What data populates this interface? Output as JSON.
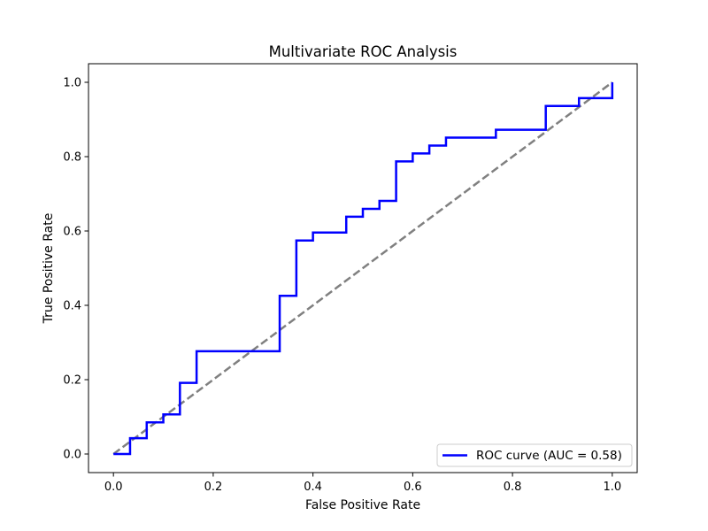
{
  "chart_data": {
    "type": "line",
    "title": "Multivariate ROC Analysis",
    "xlabel": "False Positive Rate",
    "ylabel": "True Positive Rate",
    "xlim": [
      -0.05,
      1.05
    ],
    "ylim": [
      -0.05,
      1.05
    ],
    "xticks": [
      "0.0",
      "0.2",
      "0.4",
      "0.6",
      "0.8",
      "1.0"
    ],
    "yticks": [
      "0.0",
      "0.2",
      "0.4",
      "0.6",
      "0.8",
      "1.0"
    ],
    "grid": false,
    "legend_position": "lower right",
    "series": [
      {
        "name": "ROC curve (AUC = 0.58)",
        "style": "step",
        "color": "#0000ff",
        "x": [
          0.0,
          0.0333,
          0.0333,
          0.0667,
          0.0667,
          0.1,
          0.1,
          0.1333,
          0.1333,
          0.1667,
          0.1667,
          0.3333,
          0.3333,
          0.3667,
          0.3667,
          0.4,
          0.4,
          0.4667,
          0.4667,
          0.5,
          0.5,
          0.5333,
          0.5333,
          0.5667,
          0.5667,
          0.6,
          0.6,
          0.6333,
          0.6333,
          0.6667,
          0.6667,
          0.7667,
          0.7667,
          0.8667,
          0.8667,
          0.9333,
          0.9333,
          1.0,
          1.0
        ],
        "y": [
          0.0,
          0.0,
          0.0426,
          0.0426,
          0.0851,
          0.0851,
          0.1064,
          0.1064,
          0.1915,
          0.1915,
          0.2766,
          0.2766,
          0.4255,
          0.4255,
          0.5745,
          0.5745,
          0.5957,
          0.5957,
          0.6383,
          0.6383,
          0.6596,
          0.6596,
          0.6809,
          0.6809,
          0.7872,
          0.7872,
          0.8085,
          0.8085,
          0.8298,
          0.8298,
          0.8511,
          0.8511,
          0.8723,
          0.8723,
          0.9362,
          0.9362,
          0.9574,
          0.9574,
          1.0
        ]
      },
      {
        "style": "dashed",
        "color": "#808080",
        "x": [
          0.0,
          1.0
        ],
        "y": [
          0.0,
          1.0
        ]
      }
    ]
  }
}
